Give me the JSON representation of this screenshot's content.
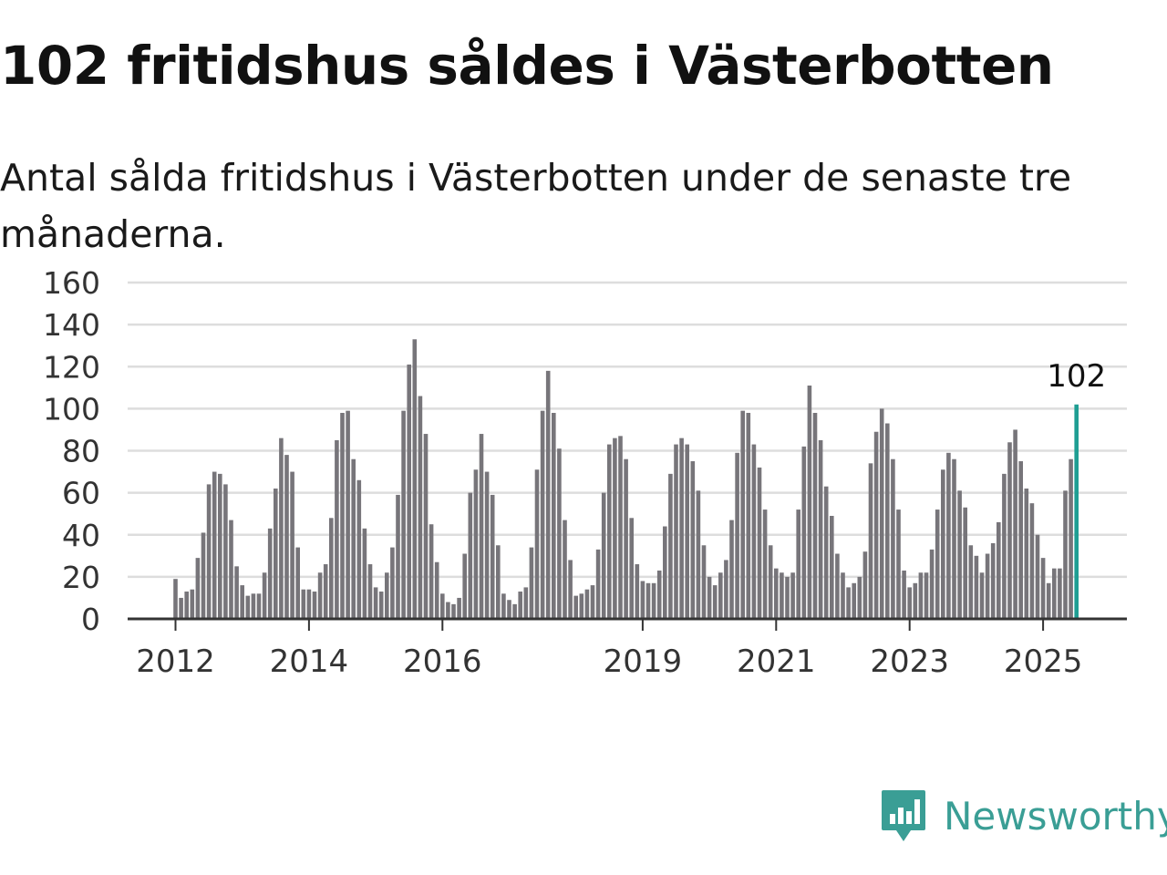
{
  "title": "102 fritidshus såldes i Västerbotten",
  "subtitle": "Antal sålda fritidshus i Västerbotten under de senaste tre månaderna.",
  "brand": {
    "name": "Newsworthy",
    "icon": "newsworthy-logo-icon",
    "color": "#3a9e95"
  },
  "colors": {
    "bar": "#77757a",
    "highlight": "#1f9e93",
    "grid": "#dddddd",
    "axis": "#333333"
  },
  "chart_data": {
    "type": "bar",
    "ylim": [
      0,
      160
    ],
    "y_ticks": [
      0,
      20,
      40,
      60,
      80,
      100,
      120,
      140,
      160
    ],
    "x_ticks": [
      {
        "label": "2012",
        "index": 0
      },
      {
        "label": "2014",
        "index": 24
      },
      {
        "label": "2016",
        "index": 48
      },
      {
        "label": "2019",
        "index": 84
      },
      {
        "label": "2021",
        "index": 108
      },
      {
        "label": "2023",
        "index": 132
      },
      {
        "label": "2025",
        "index": 156
      }
    ],
    "grid": true,
    "last_value_label": "102",
    "series": [
      {
        "values": [
          19,
          10,
          13,
          14,
          29,
          41,
          64,
          70,
          69,
          64,
          47,
          25,
          16,
          11,
          12,
          12,
          22,
          43,
          62,
          86,
          78,
          70,
          34,
          14,
          14,
          13,
          22,
          26,
          48,
          85,
          98,
          99,
          76,
          66,
          43,
          26,
          15,
          13,
          22,
          34,
          59,
          99,
          121,
          133,
          106,
          88,
          45,
          27,
          12,
          8,
          7,
          10,
          31,
          60,
          71,
          88,
          70,
          59,
          35,
          12,
          9,
          7,
          13,
          15,
          34,
          71,
          99,
          118,
          98,
          81,
          47,
          28,
          11,
          12,
          14,
          16,
          33,
          60,
          83,
          86,
          87,
          76,
          48,
          26,
          18,
          17,
          17,
          23,
          44,
          69,
          83,
          86,
          83,
          75,
          61,
          35,
          20,
          16,
          22,
          28,
          47,
          79,
          99,
          98,
          83,
          72,
          52,
          35,
          24,
          22,
          20,
          22,
          52,
          82,
          111,
          98,
          85,
          63,
          49,
          31,
          22,
          15,
          17,
          20,
          32,
          74,
          89,
          100,
          93,
          76,
          52,
          23,
          15,
          17,
          22,
          22,
          33,
          52,
          71,
          79,
          76,
          61,
          53,
          35,
          30,
          22,
          31,
          36,
          46,
          69,
          84,
          90,
          75,
          62,
          55,
          40,
          29,
          17,
          24,
          24,
          61,
          76,
          102
        ]
      }
    ]
  }
}
